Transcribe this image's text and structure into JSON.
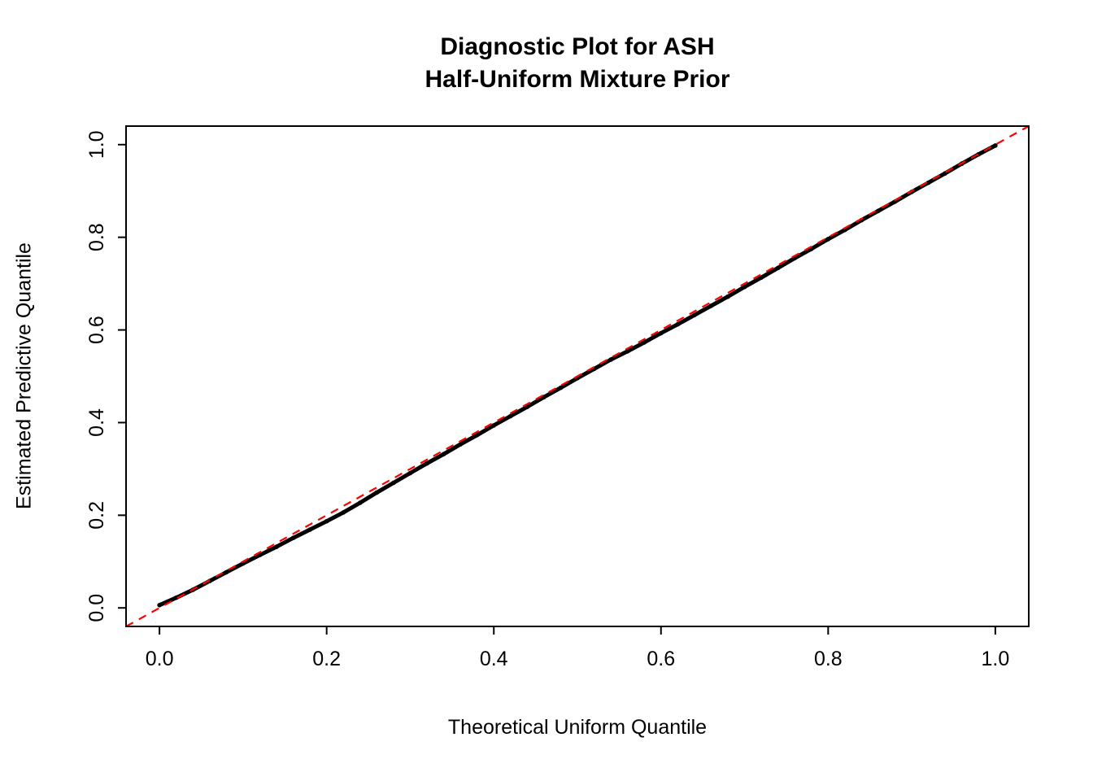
{
  "page": {
    "background_color": "#FFFFFF",
    "axis_color": "#000000",
    "text_color": "#000000"
  },
  "chart_data": {
    "type": "scatter",
    "title_lines": [
      "Diagnostic Plot for ASH",
      "Half-Uniform Mixture Prior"
    ],
    "xlabel": "Theoretical Uniform Quantile",
    "ylabel": "Estimated Predictive Quantile",
    "xlim": [
      -0.04,
      1.04
    ],
    "ylim": [
      -0.04,
      1.04
    ],
    "xticks": [
      0.0,
      0.2,
      0.4,
      0.6,
      0.8,
      1.0
    ],
    "yticks": [
      0.0,
      0.2,
      0.4,
      0.6,
      0.8,
      1.0
    ],
    "grid": false,
    "legend": "none",
    "point_color": "#000000",
    "point_style": "filled-dot",
    "reference_line": {
      "equation": "y = x",
      "color": "#FF0000",
      "style": "dashed",
      "span": [
        [
          -0.04,
          -0.04
        ],
        [
          1.04,
          1.04
        ]
      ]
    },
    "points": {
      "x": [
        0.0,
        0.02,
        0.04,
        0.06,
        0.08,
        0.1,
        0.12,
        0.14,
        0.16,
        0.18,
        0.2,
        0.22,
        0.24,
        0.26,
        0.28,
        0.3,
        0.32,
        0.34,
        0.36,
        0.38,
        0.4,
        0.42,
        0.44,
        0.46,
        0.48,
        0.5,
        0.52,
        0.54,
        0.56,
        0.58,
        0.6,
        0.62,
        0.64,
        0.66,
        0.68,
        0.7,
        0.72,
        0.74,
        0.76,
        0.78,
        0.8,
        0.82,
        0.84,
        0.86,
        0.88,
        0.9,
        0.92,
        0.94,
        0.96,
        0.98,
        1.0
      ],
      "y": [
        0.006,
        0.022,
        0.039,
        0.058,
        0.077,
        0.096,
        0.114,
        0.132,
        0.151,
        0.169,
        0.187,
        0.206,
        0.227,
        0.249,
        0.27,
        0.291,
        0.312,
        0.332,
        0.353,
        0.373,
        0.394,
        0.414,
        0.434,
        0.455,
        0.475,
        0.496,
        0.516,
        0.536,
        0.554,
        0.573,
        0.593,
        0.612,
        0.632,
        0.652,
        0.672,
        0.693,
        0.713,
        0.734,
        0.755,
        0.775,
        0.796,
        0.816,
        0.837,
        0.857,
        0.877,
        0.898,
        0.918,
        0.938,
        0.959,
        0.979,
        0.998
      ]
    }
  }
}
